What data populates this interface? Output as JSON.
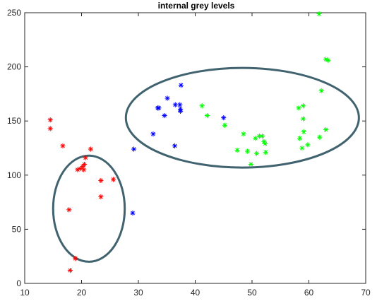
{
  "chart_data": {
    "type": "scatter",
    "title": "internal grey levels",
    "xlabel": "",
    "ylabel": "",
    "xlim": [
      10,
      70
    ],
    "ylim": [
      0,
      250
    ],
    "x_ticks": [
      10,
      20,
      30,
      40,
      50,
      60,
      70
    ],
    "y_ticks": [
      0,
      50,
      100,
      150,
      200,
      250
    ],
    "grid": false,
    "marker": "asterisk",
    "series": [
      {
        "color": "#ff0000",
        "points": [
          [
            14.5,
            151
          ],
          [
            14.5,
            143
          ],
          [
            16.7,
            127
          ],
          [
            21.6,
            124
          ],
          [
            20.7,
            116
          ],
          [
            20.5,
            110
          ],
          [
            20.2,
            108
          ],
          [
            19.8,
            106
          ],
          [
            20.4,
            105
          ],
          [
            19.3,
            105
          ],
          [
            23.4,
            95
          ],
          [
            25.6,
            96
          ],
          [
            23.4,
            80
          ],
          [
            17.8,
            68
          ],
          [
            18.9,
            23
          ],
          [
            18.0,
            12
          ]
        ]
      },
      {
        "color": "#0000ff",
        "points": [
          [
            37.5,
            183
          ],
          [
            35.1,
            171
          ],
          [
            36.5,
            165
          ],
          [
            37.3,
            165
          ],
          [
            37.4,
            161
          ],
          [
            33.4,
            162
          ],
          [
            33.6,
            162
          ],
          [
            37.4,
            159
          ],
          [
            34.6,
            155
          ],
          [
            45.0,
            153
          ],
          [
            32.6,
            138
          ],
          [
            36.4,
            127
          ],
          [
            29.2,
            124
          ],
          [
            29.0,
            65
          ]
        ]
      },
      {
        "color": "#00ff00",
        "points": [
          [
            61.8,
            249
          ],
          [
            63.0,
            207
          ],
          [
            63.4,
            206
          ],
          [
            62.2,
            178
          ],
          [
            41.2,
            164
          ],
          [
            59.0,
            164
          ],
          [
            58.2,
            162
          ],
          [
            42.1,
            155
          ],
          [
            59.0,
            152
          ],
          [
            45.2,
            146
          ],
          [
            58.4,
            134
          ],
          [
            59.1,
            140
          ],
          [
            63.0,
            142
          ],
          [
            61.9,
            135
          ],
          [
            48.5,
            138
          ],
          [
            50.6,
            134
          ],
          [
            51.3,
            136
          ],
          [
            51.8,
            136
          ],
          [
            52.1,
            131
          ],
          [
            52.3,
            129
          ],
          [
            49.2,
            122
          ],
          [
            47.4,
            123
          ],
          [
            50.8,
            120
          ],
          [
            52.4,
            121
          ],
          [
            59.8,
            128
          ],
          [
            58.8,
            125
          ],
          [
            49.8,
            110
          ]
        ]
      }
    ],
    "ellipses": [
      {
        "color": "#41636f",
        "cx": 21.3,
        "cy": 69,
        "rx": 6.3,
        "ry": 49
      },
      {
        "color": "#41636f",
        "cx": 48.3,
        "cy": 153,
        "rx": 20.5,
        "ry": 46
      }
    ]
  }
}
